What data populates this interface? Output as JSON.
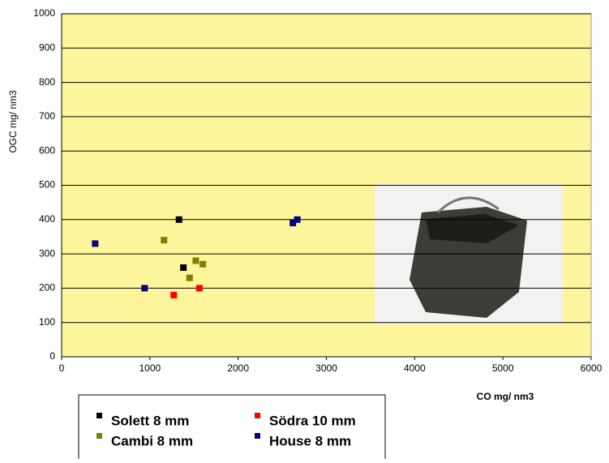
{
  "chart_data": {
    "type": "scatter",
    "x_label": "CO mg/ nm3",
    "y_label": "OGC mg/ nm3",
    "xlim": [
      0,
      6000
    ],
    "xticks": [
      0,
      1000,
      2000,
      3000,
      4000,
      5000,
      6000
    ],
    "ylim": [
      0,
      1000
    ],
    "yticks": [
      0,
      100,
      200,
      300,
      400,
      500,
      600,
      700,
      800,
      900,
      1000
    ],
    "grid": true,
    "series": [
      {
        "name": "Solett 8 mm",
        "color": "#000000",
        "x": [
          1330,
          1380
        ],
        "values": [
          400,
          260
        ]
      },
      {
        "name": "Södra 10 mm",
        "color": "#ff0000",
        "x": [
          1270,
          1560
        ],
        "values": [
          180,
          200
        ]
      },
      {
        "name": "Cambi 8 mm",
        "color": "#808000",
        "x": [
          1160,
          1520,
          1600,
          1450
        ],
        "values": [
          340,
          280,
          270,
          230
        ]
      },
      {
        "name": "House  8 mm",
        "color": "#000080",
        "x": [
          380,
          940,
          2620,
          2670
        ],
        "values": [
          330,
          200,
          390,
          400
        ]
      }
    ]
  }
}
